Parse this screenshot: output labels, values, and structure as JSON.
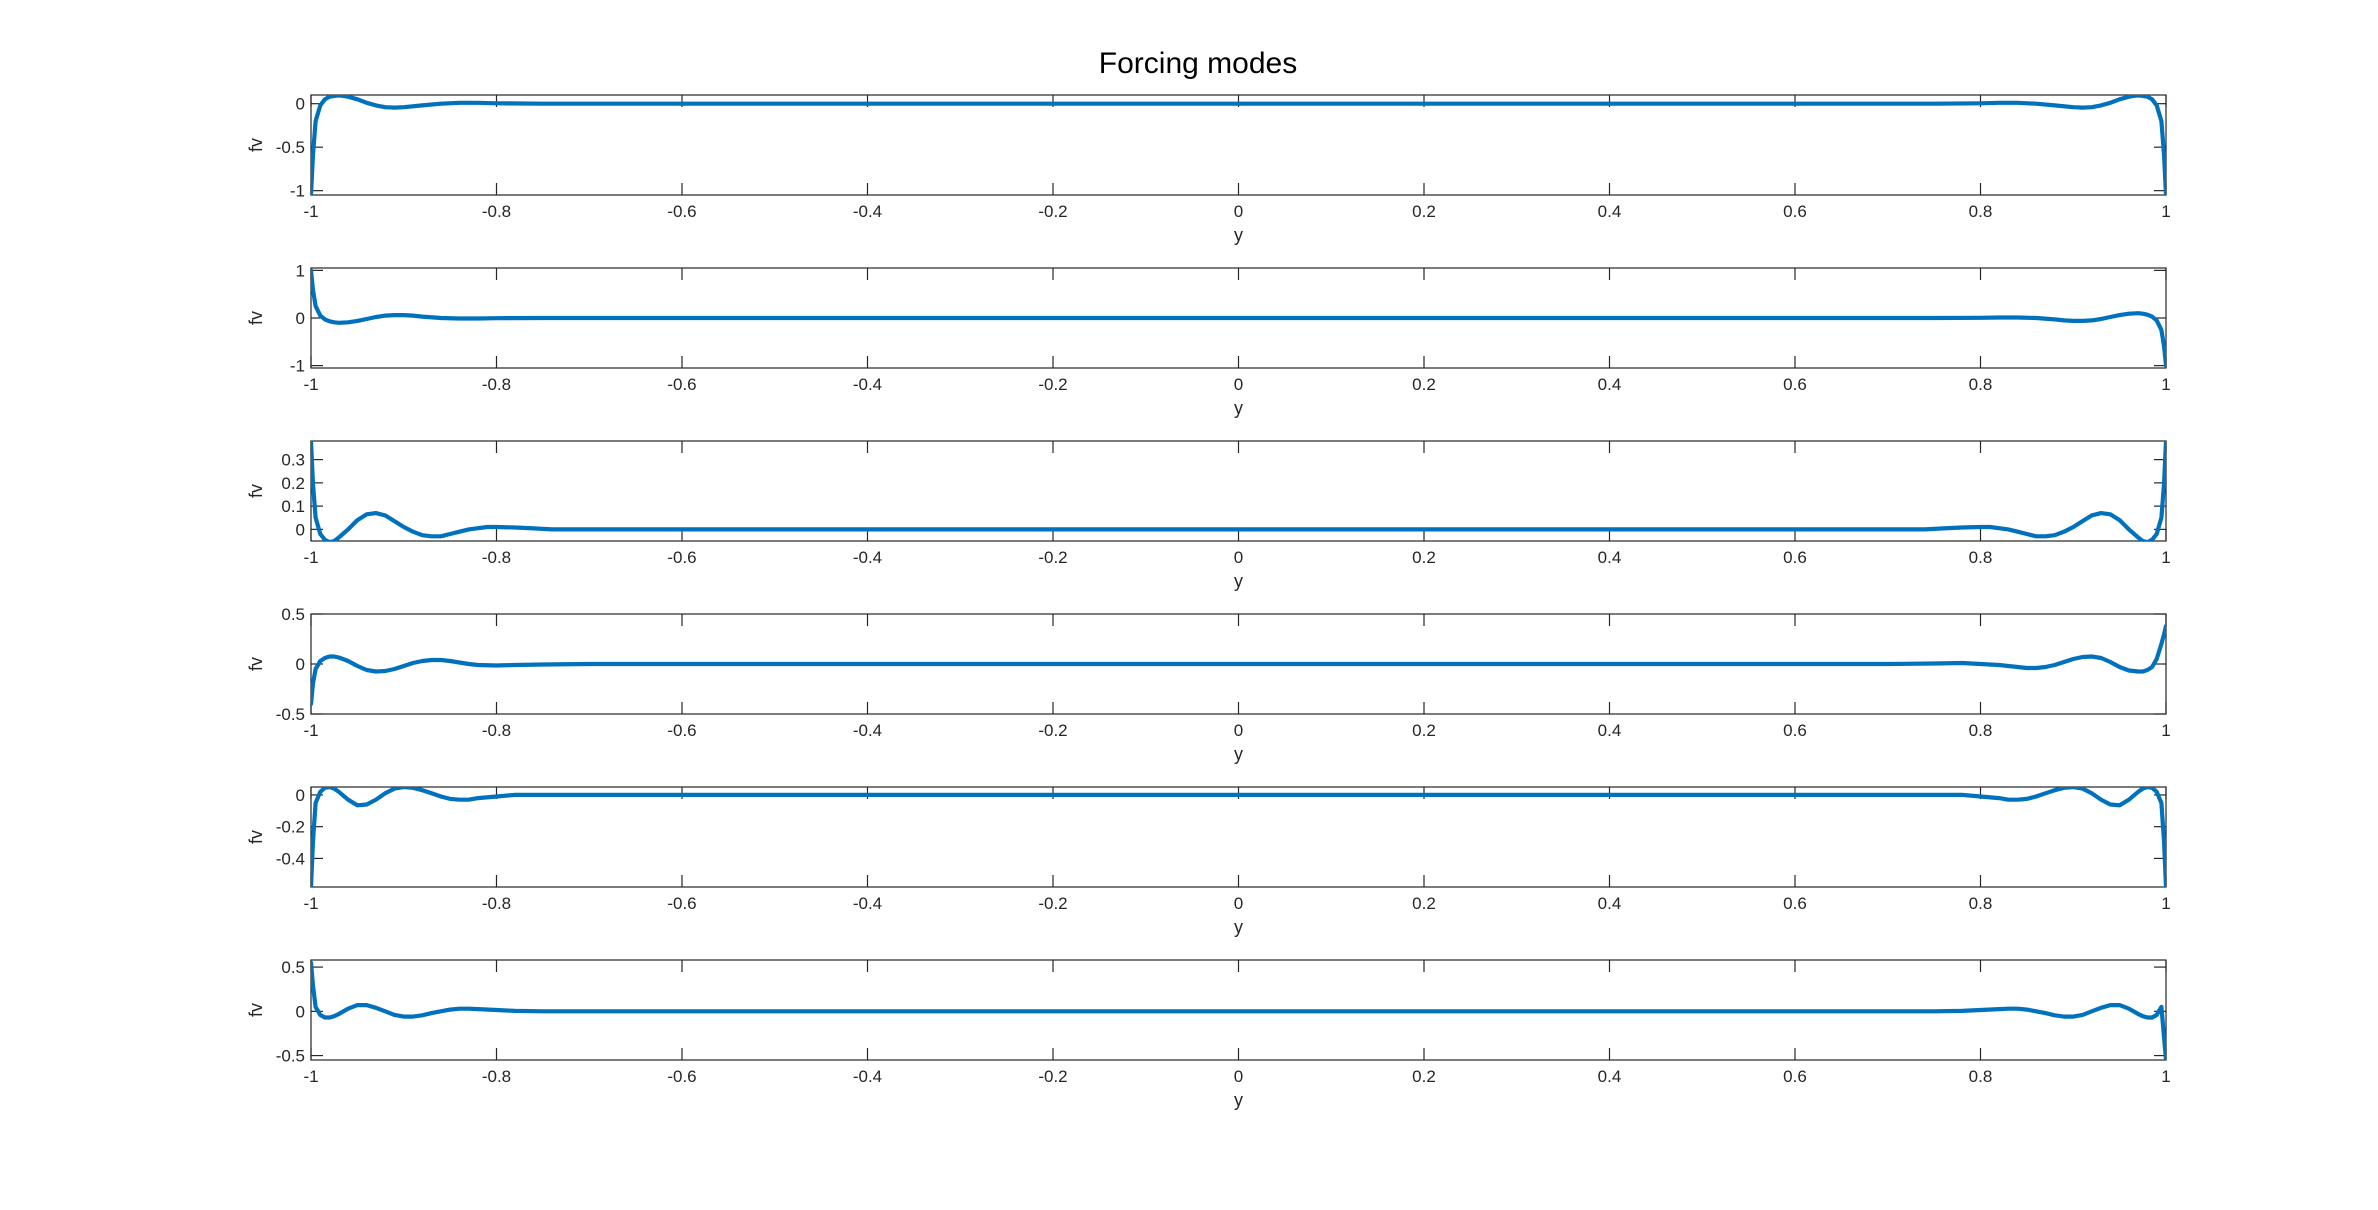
{
  "figure": {
    "title": "Forcing modes",
    "background": "#ffffff",
    "axis_color": "#262626"
  },
  "chart_data": [
    {
      "type": "line",
      "title": "",
      "xlabel": "y",
      "ylabel": "fv",
      "xlim": [
        -1,
        1
      ],
      "ylim": [
        -1.05,
        0.1
      ],
      "xticks": [
        -1,
        -0.8,
        -0.6,
        -0.4,
        -0.2,
        0,
        0.2,
        0.4,
        0.6,
        0.8,
        1
      ],
      "xticklabels": [
        "-1",
        "-0.8",
        "-0.6",
        "-0.4",
        "-0.2",
        "0",
        "0.2",
        "0.4",
        "0.6",
        "0.8",
        "1"
      ],
      "yticks": [
        -1,
        -0.5,
        0
      ],
      "yticklabels": [
        "-1",
        "-0.5",
        "0"
      ],
      "grid": false,
      "legend": "none",
      "series": [
        {
          "color": "#0072BD",
          "x": [
            -1,
            -0.998,
            -0.995,
            -0.99,
            -0.985,
            -0.98,
            -0.975,
            -0.97,
            -0.965,
            -0.96,
            -0.95,
            -0.94,
            -0.93,
            -0.92,
            -0.91,
            -0.9,
            -0.88,
            -0.86,
            -0.84,
            -0.82,
            -0.8,
            -0.75,
            -0.7,
            0,
            0.7,
            0.75,
            0.8,
            0.82,
            0.84,
            0.86,
            0.88,
            0.9,
            0.91,
            0.92,
            0.93,
            0.94,
            0.95,
            0.96,
            0.965,
            0.97,
            0.975,
            0.98,
            0.985,
            0.99,
            0.995,
            0.998,
            1
          ],
          "y": [
            -1.05,
            -0.6,
            -0.2,
            -0.02,
            0.05,
            0.08,
            0.09,
            0.095,
            0.09,
            0.08,
            0.05,
            0.01,
            -0.02,
            -0.04,
            -0.045,
            -0.04,
            -0.02,
            0.0,
            0.01,
            0.01,
            0.005,
            0.0,
            0.0,
            0.0,
            0.0,
            0.0,
            0.005,
            0.01,
            0.01,
            0.0,
            -0.02,
            -0.04,
            -0.045,
            -0.04,
            -0.02,
            0.01,
            0.05,
            0.08,
            0.09,
            0.095,
            0.09,
            0.08,
            0.05,
            -0.02,
            -0.2,
            -0.6,
            -1.05
          ]
        }
      ]
    },
    {
      "type": "line",
      "title": "",
      "xlabel": "y",
      "ylabel": "fv",
      "xlim": [
        -1,
        1
      ],
      "ylim": [
        -1.05,
        1.05
      ],
      "xticks": [
        -1,
        -0.8,
        -0.6,
        -0.4,
        -0.2,
        0,
        0.2,
        0.4,
        0.6,
        0.8,
        1
      ],
      "xticklabels": [
        "-1",
        "-0.8",
        "-0.6",
        "-0.4",
        "-0.2",
        "0",
        "0.2",
        "0.4",
        "0.6",
        "0.8",
        "1"
      ],
      "yticks": [
        -1,
        0,
        1
      ],
      "yticklabels": [
        "-1",
        "0",
        "1"
      ],
      "grid": false,
      "legend": "none",
      "series": [
        {
          "color": "#0072BD",
          "x": [
            -1,
            -0.998,
            -0.995,
            -0.99,
            -0.985,
            -0.98,
            -0.975,
            -0.97,
            -0.96,
            -0.95,
            -0.94,
            -0.93,
            -0.92,
            -0.91,
            -0.9,
            -0.89,
            -0.88,
            -0.86,
            -0.84,
            -0.82,
            -0.8,
            -0.75,
            -0.7,
            0,
            0.7,
            0.75,
            0.8,
            0.82,
            0.84,
            0.86,
            0.88,
            0.89,
            0.9,
            0.91,
            0.92,
            0.93,
            0.94,
            0.95,
            0.96,
            0.97,
            0.975,
            0.98,
            0.985,
            0.99,
            0.995,
            0.998,
            1
          ],
          "y": [
            1.0,
            0.6,
            0.25,
            0.05,
            -0.03,
            -0.07,
            -0.09,
            -0.1,
            -0.09,
            -0.06,
            -0.02,
            0.02,
            0.05,
            0.06,
            0.06,
            0.05,
            0.03,
            0.0,
            -0.01,
            -0.01,
            -0.005,
            0.0,
            0.0,
            0.0,
            0.0,
            0.0,
            0.005,
            0.01,
            0.01,
            0.0,
            -0.03,
            -0.05,
            -0.06,
            -0.06,
            -0.05,
            -0.02,
            0.02,
            0.06,
            0.09,
            0.1,
            0.09,
            0.07,
            0.03,
            -0.05,
            -0.25,
            -0.6,
            -1.0
          ]
        }
      ]
    },
    {
      "type": "line",
      "title": "",
      "xlabel": "y",
      "ylabel": "fv",
      "xlim": [
        -1,
        1
      ],
      "ylim": [
        -0.05,
        0.38
      ],
      "xticks": [
        -1,
        -0.8,
        -0.6,
        -0.4,
        -0.2,
        0,
        0.2,
        0.4,
        0.6,
        0.8,
        1
      ],
      "xticklabels": [
        "-1",
        "-0.8",
        "-0.6",
        "-0.4",
        "-0.2",
        "0",
        "0.2",
        "0.4",
        "0.6",
        "0.8",
        "1"
      ],
      "yticks": [
        0,
        0.1,
        0.2,
        0.3
      ],
      "yticklabels": [
        "0",
        "0.1",
        "0.2",
        "0.3"
      ],
      "grid": false,
      "legend": "none",
      "series": [
        {
          "color": "#0072BD",
          "x": [
            -1,
            -0.998,
            -0.995,
            -0.99,
            -0.985,
            -0.98,
            -0.975,
            -0.97,
            -0.96,
            -0.95,
            -0.94,
            -0.93,
            -0.92,
            -0.91,
            -0.9,
            -0.89,
            -0.88,
            -0.87,
            -0.86,
            -0.85,
            -0.84,
            -0.83,
            -0.82,
            -0.81,
            -0.8,
            -0.78,
            -0.76,
            -0.74,
            -0.7,
            0,
            0.7,
            0.74,
            0.76,
            0.78,
            0.8,
            0.81,
            0.82,
            0.83,
            0.84,
            0.85,
            0.86,
            0.87,
            0.88,
            0.89,
            0.9,
            0.91,
            0.92,
            0.93,
            0.94,
            0.95,
            0.96,
            0.97,
            0.975,
            0.98,
            0.985,
            0.99,
            0.995,
            0.998,
            1
          ],
          "y": [
            0.38,
            0.2,
            0.05,
            -0.02,
            -0.045,
            -0.055,
            -0.05,
            -0.035,
            0.0,
            0.04,
            0.065,
            0.07,
            0.06,
            0.035,
            0.01,
            -0.01,
            -0.025,
            -0.03,
            -0.03,
            -0.02,
            -0.01,
            0.0,
            0.005,
            0.01,
            0.01,
            0.008,
            0.004,
            0.0,
            0.0,
            0.0,
            0.0,
            0.0,
            0.004,
            0.008,
            0.01,
            0.01,
            0.005,
            0.0,
            -0.01,
            -0.02,
            -0.03,
            -0.03,
            -0.025,
            -0.01,
            0.01,
            0.035,
            0.06,
            0.07,
            0.065,
            0.04,
            0.0,
            -0.035,
            -0.05,
            -0.055,
            -0.045,
            -0.02,
            0.05,
            0.2,
            0.38
          ]
        }
      ]
    },
    {
      "type": "line",
      "title": "",
      "xlabel": "y",
      "ylabel": "fv",
      "xlim": [
        -1,
        1
      ],
      "ylim": [
        -0.5,
        0.5
      ],
      "xticks": [
        -1,
        -0.8,
        -0.6,
        -0.4,
        -0.2,
        0,
        0.2,
        0.4,
        0.6,
        0.8,
        1
      ],
      "xticklabels": [
        "-1",
        "-0.8",
        "-0.6",
        "-0.4",
        "-0.2",
        "0",
        "0.2",
        "0.4",
        "0.6",
        "0.8",
        "1"
      ],
      "yticks": [
        -0.5,
        0,
        0.5
      ],
      "yticklabels": [
        "-0.5",
        "0",
        "0.5"
      ],
      "grid": false,
      "legend": "none",
      "series": [
        {
          "color": "#0072BD",
          "x": [
            -1,
            -0.998,
            -0.995,
            -0.99,
            -0.985,
            -0.98,
            -0.975,
            -0.97,
            -0.96,
            -0.95,
            -0.94,
            -0.93,
            -0.92,
            -0.91,
            -0.9,
            -0.89,
            -0.88,
            -0.87,
            -0.86,
            -0.85,
            -0.84,
            -0.83,
            -0.82,
            -0.8,
            -0.78,
            -0.75,
            -0.7,
            0,
            0.7,
            0.75,
            0.78,
            0.8,
            0.82,
            0.83,
            0.84,
            0.85,
            0.86,
            0.87,
            0.88,
            0.89,
            0.9,
            0.91,
            0.92,
            0.93,
            0.94,
            0.95,
            0.96,
            0.97,
            0.975,
            0.98,
            0.985,
            0.99,
            0.995,
            0.998,
            1
          ],
          "y": [
            -0.4,
            -0.2,
            -0.05,
            0.03,
            0.06,
            0.075,
            0.075,
            0.065,
            0.03,
            -0.02,
            -0.06,
            -0.075,
            -0.07,
            -0.05,
            -0.02,
            0.01,
            0.03,
            0.04,
            0.04,
            0.03,
            0.015,
            0.0,
            -0.01,
            -0.015,
            -0.01,
            -0.005,
            0.0,
            0.0,
            0.0,
            0.005,
            0.01,
            0.0,
            -0.01,
            -0.02,
            -0.03,
            -0.04,
            -0.04,
            -0.03,
            -0.01,
            0.02,
            0.05,
            0.07,
            0.075,
            0.06,
            0.02,
            -0.03,
            -0.065,
            -0.075,
            -0.075,
            -0.06,
            -0.03,
            0.05,
            0.2,
            0.3,
            0.38
          ]
        }
      ]
    },
    {
      "type": "line",
      "title": "",
      "xlabel": "y",
      "ylabel": "fv",
      "xlim": [
        -1,
        1
      ],
      "ylim": [
        -0.58,
        0.05
      ],
      "xticks": [
        -1,
        -0.8,
        -0.6,
        -0.4,
        -0.2,
        0,
        0.2,
        0.4,
        0.6,
        0.8,
        1
      ],
      "xticklabels": [
        "-1",
        "-0.8",
        "-0.6",
        "-0.4",
        "-0.2",
        "0",
        "0.2",
        "0.4",
        "0.6",
        "0.8",
        "1"
      ],
      "yticks": [
        -0.4,
        -0.2,
        0
      ],
      "yticklabels": [
        "-0.4",
        "-0.2",
        "0"
      ],
      "grid": false,
      "legend": "none",
      "series": [
        {
          "color": "#0072BD",
          "x": [
            -1,
            -0.998,
            -0.995,
            -0.99,
            -0.985,
            -0.98,
            -0.975,
            -0.97,
            -0.96,
            -0.95,
            -0.94,
            -0.93,
            -0.92,
            -0.91,
            -0.9,
            -0.89,
            -0.88,
            -0.87,
            -0.86,
            -0.85,
            -0.84,
            -0.83,
            -0.82,
            -0.8,
            -0.78,
            -0.75,
            -0.7,
            0,
            0.7,
            0.75,
            0.78,
            0.8,
            0.82,
            0.83,
            0.84,
            0.85,
            0.86,
            0.87,
            0.88,
            0.89,
            0.9,
            0.91,
            0.92,
            0.93,
            0.94,
            0.95,
            0.96,
            0.97,
            0.975,
            0.98,
            0.985,
            0.99,
            0.995,
            0.998,
            1
          ],
          "y": [
            -0.58,
            -0.3,
            -0.05,
            0.02,
            0.045,
            0.05,
            0.04,
            0.02,
            -0.03,
            -0.065,
            -0.06,
            -0.03,
            0.01,
            0.04,
            0.05,
            0.045,
            0.03,
            0.01,
            -0.01,
            -0.025,
            -0.03,
            -0.03,
            -0.02,
            -0.01,
            0.0,
            0.0,
            0.0,
            0.0,
            0.0,
            0.0,
            0.0,
            -0.01,
            -0.02,
            -0.03,
            -0.03,
            -0.025,
            -0.01,
            0.01,
            0.03,
            0.045,
            0.05,
            0.04,
            0.01,
            -0.03,
            -0.06,
            -0.065,
            -0.03,
            0.02,
            0.04,
            0.05,
            0.045,
            0.02,
            -0.05,
            -0.3,
            -0.58
          ]
        }
      ]
    },
    {
      "type": "line",
      "title": "",
      "xlabel": "y",
      "ylabel": "fv",
      "xlim": [
        -1,
        1
      ],
      "ylim": [
        -0.55,
        0.58
      ],
      "xticks": [
        -1,
        -0.8,
        -0.6,
        -0.4,
        -0.2,
        0,
        0.2,
        0.4,
        0.6,
        0.8,
        1
      ],
      "xticklabels": [
        "-1",
        "-0.8",
        "-0.6",
        "-0.4",
        "-0.2",
        "0",
        "0.2",
        "0.4",
        "0.6",
        "0.8",
        "1"
      ],
      "yticks": [
        -0.5,
        0,
        0.5
      ],
      "yticklabels": [
        "-0.5",
        "0",
        "0.5"
      ],
      "grid": false,
      "legend": "none",
      "series": [
        {
          "color": "#0072BD",
          "x": [
            -1,
            -0.998,
            -0.995,
            -0.99,
            -0.985,
            -0.98,
            -0.975,
            -0.97,
            -0.96,
            -0.95,
            -0.94,
            -0.93,
            -0.92,
            -0.91,
            -0.9,
            -0.89,
            -0.88,
            -0.87,
            -0.86,
            -0.85,
            -0.84,
            -0.83,
            -0.82,
            -0.8,
            -0.78,
            -0.75,
            -0.7,
            0,
            0.7,
            0.75,
            0.78,
            0.8,
            0.82,
            0.83,
            0.84,
            0.85,
            0.86,
            0.87,
            0.88,
            0.89,
            0.9,
            0.91,
            0.92,
            0.93,
            0.94,
            0.95,
            0.96,
            0.97,
            0.975,
            0.98,
            0.985,
            0.99,
            0.995,
            0.998,
            1
          ],
          "y": [
            0.55,
            0.3,
            0.05,
            -0.04,
            -0.07,
            -0.07,
            -0.055,
            -0.03,
            0.03,
            0.07,
            0.07,
            0.04,
            0.0,
            -0.04,
            -0.06,
            -0.06,
            -0.045,
            -0.02,
            0.0,
            0.02,
            0.03,
            0.03,
            0.025,
            0.015,
            0.005,
            0.0,
            0.0,
            0.0,
            0.0,
            0.0,
            0.005,
            0.015,
            0.025,
            0.03,
            0.03,
            0.02,
            0.0,
            -0.02,
            -0.045,
            -0.06,
            -0.06,
            -0.04,
            0.0,
            0.04,
            0.07,
            0.07,
            0.03,
            -0.03,
            -0.055,
            -0.07,
            -0.07,
            -0.04,
            0.05,
            -0.3,
            -0.55
          ]
        }
      ]
    }
  ]
}
